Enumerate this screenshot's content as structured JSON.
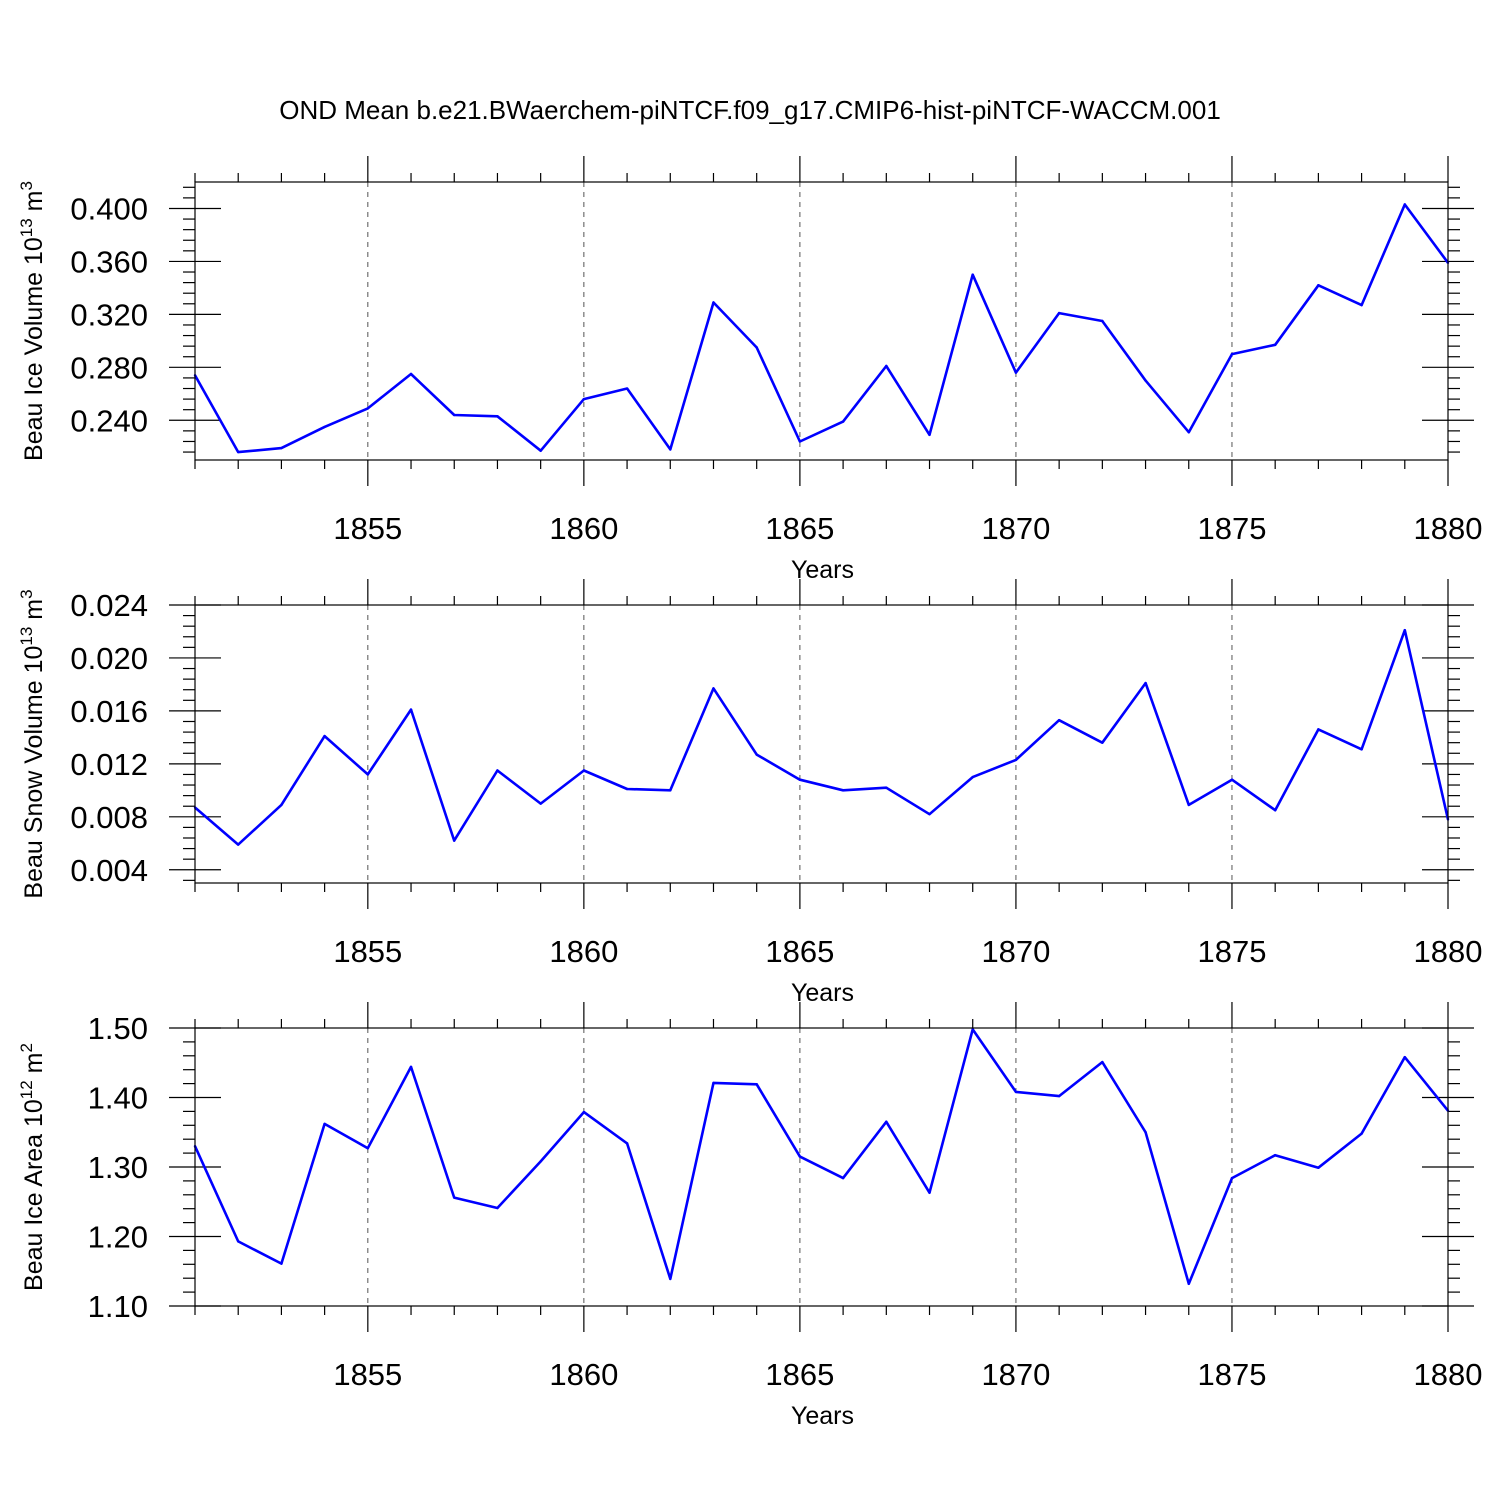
{
  "title": "OND Mean b.e21.BWaerchem-piNTCF.f09_g17.CMIP6-hist-piNTCF-WACCM.001",
  "colors": {
    "line": "#0000ff",
    "frame": "#000000",
    "grid": "#555555"
  },
  "chart_data": [
    {
      "type": "line",
      "ylabel": "Beau Ice Volume 10",
      "ylabel_exp": "13",
      "ylabel_unit": " m",
      "ylabel_unit_exp": "3",
      "xlabel": "Years",
      "xlim": [
        1851,
        1880
      ],
      "ylim": [
        0.21,
        0.42
      ],
      "xticks": [
        1855,
        1860,
        1865,
        1870,
        1875,
        1880
      ],
      "xtick_labels": [
        "1855",
        "1860",
        "1865",
        "1870",
        "1875",
        "1880"
      ],
      "yticks": [
        0.24,
        0.28,
        0.32,
        0.36,
        0.4
      ],
      "ytick_labels": [
        "0.240",
        "0.280",
        "0.320",
        "0.360",
        "0.400"
      ],
      "grid": "vertical dashed at major x ticks",
      "x": [
        1851,
        1852,
        1853,
        1854,
        1855,
        1856,
        1857,
        1858,
        1859,
        1860,
        1861,
        1862,
        1863,
        1864,
        1865,
        1866,
        1867,
        1868,
        1869,
        1870,
        1871,
        1872,
        1873,
        1874,
        1875,
        1876,
        1877,
        1878,
        1879,
        1880
      ],
      "values": [
        0.274,
        0.216,
        0.219,
        0.235,
        0.249,
        0.275,
        0.244,
        0.243,
        0.217,
        0.256,
        0.264,
        0.218,
        0.329,
        0.295,
        0.224,
        0.239,
        0.281,
        0.229,
        0.35,
        0.276,
        0.321,
        0.315,
        0.27,
        0.231,
        0.29,
        0.297,
        0.342,
        0.327,
        0.403,
        0.359
      ]
    },
    {
      "type": "line",
      "ylabel": "Beau Snow Volume 10",
      "ylabel_exp": "13",
      "ylabel_unit": " m",
      "ylabel_unit_exp": "3",
      "xlabel": "Years",
      "xlim": [
        1851,
        1880
      ],
      "ylim": [
        0.003,
        0.024
      ],
      "xticks": [
        1855,
        1860,
        1865,
        1870,
        1875,
        1880
      ],
      "xtick_labels": [
        "1855",
        "1860",
        "1865",
        "1870",
        "1875",
        "1880"
      ],
      "yticks": [
        0.004,
        0.008,
        0.012,
        0.016,
        0.02,
        0.024
      ],
      "ytick_labels": [
        "0.004",
        "0.008",
        "0.012",
        "0.016",
        "0.020",
        "0.024"
      ],
      "grid": "vertical dashed at major x ticks",
      "x": [
        1851,
        1852,
        1853,
        1854,
        1855,
        1856,
        1857,
        1858,
        1859,
        1860,
        1861,
        1862,
        1863,
        1864,
        1865,
        1866,
        1867,
        1868,
        1869,
        1870,
        1871,
        1872,
        1873,
        1874,
        1875,
        1876,
        1877,
        1878,
        1879,
        1880
      ],
      "values": [
        0.0087,
        0.0059,
        0.0089,
        0.0141,
        0.0112,
        0.0161,
        0.0062,
        0.0115,
        0.009,
        0.0115,
        0.0101,
        0.01,
        0.0177,
        0.0127,
        0.0108,
        0.01,
        0.0102,
        0.0082,
        0.011,
        0.0123,
        0.0153,
        0.0136,
        0.0181,
        0.0089,
        0.0108,
        0.0085,
        0.0146,
        0.0131,
        0.0221,
        0.0078
      ]
    },
    {
      "type": "line",
      "ylabel": "Beau Ice Area 10",
      "ylabel_exp": "12",
      "ylabel_unit": " m",
      "ylabel_unit_exp": "2",
      "xlabel": "Years",
      "xlim": [
        1851,
        1880
      ],
      "ylim": [
        1.1,
        1.5
      ],
      "xticks": [
        1855,
        1860,
        1865,
        1870,
        1875,
        1880
      ],
      "xtick_labels": [
        "1855",
        "1860",
        "1865",
        "1870",
        "1875",
        "1880"
      ],
      "yticks": [
        1.1,
        1.2,
        1.3,
        1.4,
        1.5
      ],
      "ytick_labels": [
        "1.10",
        "1.20",
        "1.30",
        "1.40",
        "1.50"
      ],
      "grid": "vertical dashed at major x ticks",
      "x": [
        1851,
        1852,
        1853,
        1854,
        1855,
        1856,
        1857,
        1858,
        1859,
        1860,
        1861,
        1862,
        1863,
        1864,
        1865,
        1866,
        1867,
        1868,
        1869,
        1870,
        1871,
        1872,
        1873,
        1874,
        1875,
        1876,
        1877,
        1878,
        1879,
        1880
      ],
      "values": [
        1.33,
        1.193,
        1.161,
        1.362,
        1.327,
        1.444,
        1.256,
        1.241,
        1.308,
        1.379,
        1.334,
        1.139,
        1.421,
        1.419,
        1.315,
        1.284,
        1.365,
        1.263,
        1.498,
        1.408,
        1.402,
        1.451,
        1.35,
        1.132,
        1.284,
        1.317,
        1.299,
        1.348,
        1.458,
        1.381
      ]
    }
  ]
}
